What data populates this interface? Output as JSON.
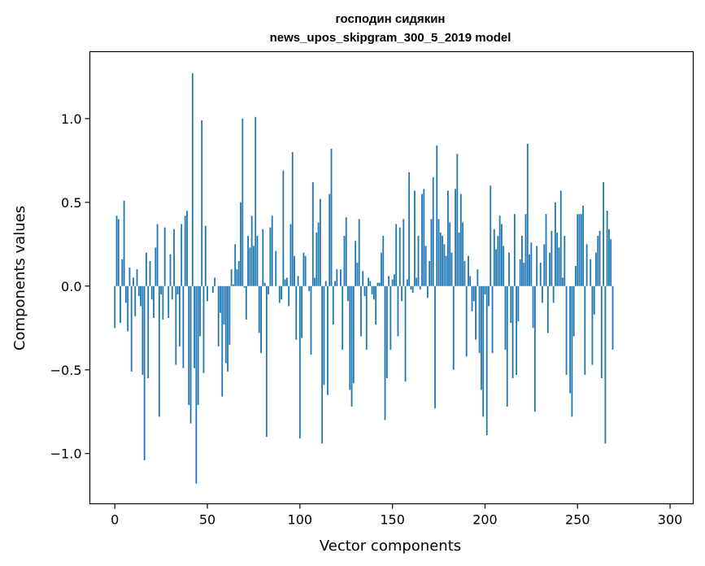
{
  "chart_data": {
    "type": "bar",
    "title": "господин сидякин",
    "subtitle": "news_upos_skipgram_300_5_2019 model",
    "xlabel": "Vector components",
    "ylabel": "Components values",
    "xlim": [
      -13.5,
      312.5
    ],
    "ylim": [
      -1.3,
      1.4
    ],
    "xticks": [
      0,
      50,
      100,
      150,
      200,
      250,
      300
    ],
    "xtick_labels": [
      "0",
      "50",
      "100",
      "150",
      "200",
      "250",
      "300"
    ],
    "yticks": [
      -1.0,
      -0.5,
      0.0,
      0.5,
      1.0
    ],
    "ytick_labels": [
      "−1.0",
      "−0.5",
      "0.0",
      "0.5",
      "1.0"
    ],
    "bar_color": "#1f77b4",
    "values": [
      -0.25,
      0.42,
      0.4,
      -0.22,
      0.16,
      0.51,
      -0.1,
      -0.27,
      0.11,
      -0.51,
      0.05,
      -0.18,
      0.1,
      -0.06,
      -0.12,
      -0.53,
      -1.04,
      0.2,
      -0.55,
      0.15,
      -0.08,
      -0.19,
      0.23,
      0.37,
      -0.78,
      -0.05,
      -0.2,
      0.35,
      0.0,
      -0.19,
      0.19,
      -0.08,
      0.34,
      -0.47,
      -0.05,
      -0.36,
      0.37,
      -0.49,
      0.42,
      0.45,
      -0.71,
      -0.82,
      1.27,
      -0.49,
      -1.18,
      -0.71,
      -0.3,
      0.99,
      -0.52,
      0.36,
      -0.09,
      0.0,
      0.0,
      -0.04,
      0.05,
      0.0,
      -0.36,
      -0.16,
      -0.66,
      -0.23,
      -0.46,
      -0.51,
      -0.35,
      0.1,
      0.01,
      0.25,
      0.1,
      0.15,
      0.5,
      1.0,
      -0.01,
      -0.2,
      0.3,
      0.23,
      0.42,
      0.24,
      1.01,
      0.3,
      -0.28,
      -0.4,
      0.34,
      0.02,
      -0.9,
      -0.05,
      0.35,
      0.42,
      0.0,
      0.21,
      0.0,
      -0.1,
      -0.08,
      0.69,
      0.04,
      0.05,
      -0.12,
      0.37,
      0.8,
      0.18,
      -0.32,
      0.06,
      -0.91,
      -0.31,
      0.2,
      0.18,
      0.0,
      -0.03,
      -0.41,
      0.62,
      0.05,
      0.32,
      0.38,
      0.52,
      -0.94,
      -0.59,
      0.03,
      -0.65,
      0.55,
      0.82,
      -0.23,
      0.03,
      0.1,
      0.0,
      0.1,
      -0.38,
      0.3,
      0.41,
      -0.09,
      -0.62,
      -0.72,
      -0.58,
      0.27,
      0.14,
      0.4,
      -0.3,
      0.09,
      -0.06,
      -0.38,
      0.05,
      0.03,
      -0.05,
      -0.08,
      -0.23,
      0.02,
      0.02,
      0.2,
      0.3,
      -0.8,
      -0.55,
      0.06,
      -0.38,
      0.04,
      0.07,
      0.37,
      -0.3,
      0.35,
      -0.09,
      0.4,
      -0.57,
      0.04,
      0.68,
      -0.02,
      -0.04,
      0.57,
      0.05,
      0.3,
      -0.02,
      0.55,
      0.58,
      0.24,
      -0.07,
      0.15,
      0.4,
      0.65,
      -0.73,
      0.84,
      0.4,
      0.32,
      0.3,
      0.25,
      0.18,
      0.57,
      0.38,
      0.2,
      -0.5,
      0.58,
      0.79,
      0.32,
      0.55,
      0.38,
      0.15,
      -0.42,
      0.18,
      0.06,
      -0.15,
      -0.09,
      -0.32,
      0.1,
      -0.4,
      -0.62,
      -0.78,
      -0.05,
      -0.89,
      -0.12,
      0.6,
      -0.4,
      0.34,
      0.22,
      0.3,
      0.42,
      0.37,
      0.24,
      -0.38,
      -0.72,
      0.2,
      -0.22,
      -0.55,
      0.43,
      -0.53,
      -0.21,
      0.16,
      0.3,
      0.14,
      0.43,
      0.85,
      0.19,
      0.26,
      -0.25,
      -0.75,
      0.24,
      0.0,
      0.14,
      -0.1,
      0.25,
      0.43,
      -0.28,
      0.2,
      0.33,
      -0.1,
      0.5,
      0.32,
      0.23,
      0.57,
      0.05,
      0.3,
      -0.53,
      0.0,
      -0.64,
      -0.78,
      -0.3,
      0.12,
      0.43,
      0.43,
      0.43,
      0.48,
      -0.53,
      0.25,
      0.0,
      0.16,
      -0.47,
      -0.17,
      0.2,
      0.3,
      0.33,
      -0.55,
      0.62,
      -0.94,
      0.45,
      0.34,
      0.28,
      -0.38
    ]
  }
}
